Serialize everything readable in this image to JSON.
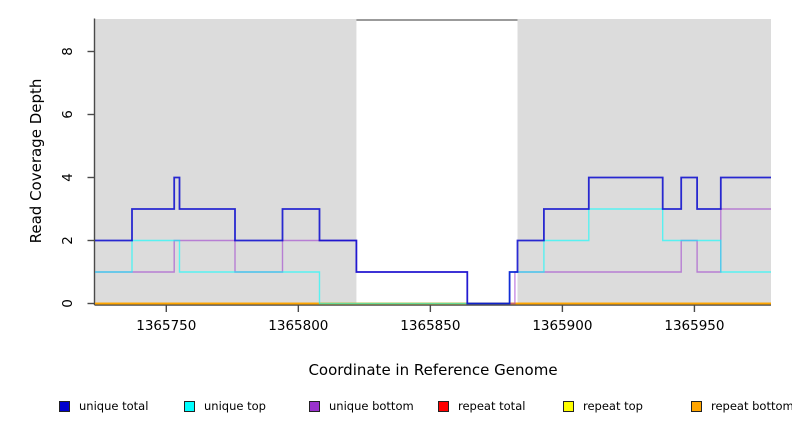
{
  "chart_data": {
    "type": "step-line",
    "title": "",
    "xlabel": "Coordinate in Reference Genome",
    "ylabel": "Read Coverage Depth",
    "xlim": [
      1365723,
      1365979
    ],
    "ylim": [
      0,
      9
    ],
    "x_ticks": [
      1365750,
      1365800,
      1365850,
      1365900,
      1365950
    ],
    "y_ticks": [
      0,
      2,
      4,
      6,
      8
    ],
    "grid": false,
    "legend_position": "bottom",
    "shaded_bands": {
      "color": "#DCDCDC",
      "regions": [
        [
          1365723,
          1365822
        ],
        [
          1365883,
          1365979
        ]
      ]
    },
    "series": [
      {
        "name": "unique total",
        "color": "#0000CD",
        "opacity": 0.82,
        "width": 1.8,
        "points": [
          [
            1365723,
            2
          ],
          [
            1365737,
            3
          ],
          [
            1365753,
            4
          ],
          [
            1365755,
            3
          ],
          [
            1365776,
            2
          ],
          [
            1365794,
            3
          ],
          [
            1365808,
            2
          ],
          [
            1365822,
            1
          ],
          [
            1365864,
            0
          ],
          [
            1365880,
            1
          ],
          [
            1365883,
            2
          ],
          [
            1365893,
            3
          ],
          [
            1365910,
            4
          ],
          [
            1365938,
            3
          ],
          [
            1365945,
            4
          ],
          [
            1365951,
            3
          ],
          [
            1365960,
            4
          ]
        ]
      },
      {
        "name": "unique top",
        "color": "#00FFFF",
        "opacity": 0.6,
        "width": 1.4,
        "points": [
          [
            1365723,
            1
          ],
          [
            1365737,
            2
          ],
          [
            1365755,
            1
          ],
          [
            1365808,
            0
          ],
          [
            1365880,
            1
          ],
          [
            1365893,
            2
          ],
          [
            1365910,
            3
          ],
          [
            1365938,
            2
          ],
          [
            1365960,
            1
          ]
        ]
      },
      {
        "name": "unique bottom",
        "color": "#9932CC",
        "opacity": 0.55,
        "width": 1.4,
        "points": [
          [
            1365723,
            1
          ],
          [
            1365753,
            2
          ],
          [
            1365776,
            1
          ],
          [
            1365794,
            2
          ],
          [
            1365822,
            1
          ],
          [
            1365864,
            0
          ],
          [
            1365882,
            1
          ],
          [
            1365945,
            2
          ],
          [
            1365951,
            1
          ],
          [
            1365960,
            3
          ]
        ]
      },
      {
        "name": "repeat total",
        "color": "#FF0000",
        "opacity": 1,
        "width": 1.4,
        "points": [
          [
            1365723,
            0
          ]
        ]
      },
      {
        "name": "repeat top",
        "color": "#FFFF00",
        "opacity": 1,
        "width": 1.4,
        "points": [
          [
            1365723,
            0
          ]
        ]
      },
      {
        "name": "repeat bottom",
        "color": "#FFA500",
        "opacity": 1,
        "width": 1.8,
        "points": [
          [
            1365723,
            0
          ]
        ]
      }
    ],
    "draw_order": [
      "repeat total",
      "repeat top",
      "repeat bottom",
      "unique bottom",
      "unique top",
      "unique total"
    ]
  }
}
